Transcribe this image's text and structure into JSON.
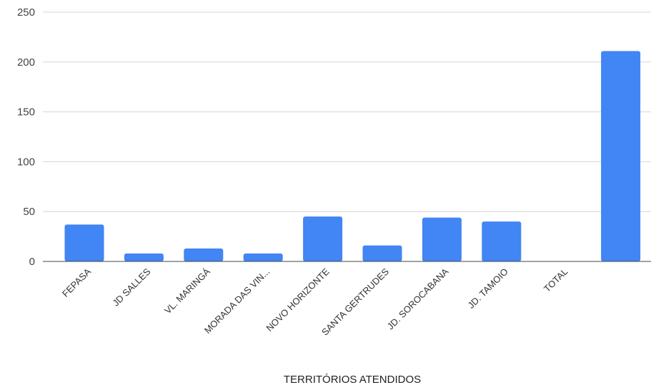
{
  "chart_data": {
    "type": "bar",
    "title": "",
    "xlabel": "TERRITÓRIOS ATENDIDOS",
    "ylabel": "",
    "ylim": [
      0,
      250
    ],
    "yticks": [
      0,
      50,
      100,
      150,
      200,
      250
    ],
    "grid": true,
    "legend": "none",
    "color": "#4285f4",
    "categories": [
      "FEPASA",
      "JD SALLES",
      "VL. MARINGÁ",
      "MORADA DAS VIN...",
      "NOVO HORIZONTE",
      "SANTA GERTRUDES",
      "JD. SOROCABANA",
      "JD. TAMOIO",
      "TOTAL",
      ""
    ],
    "values": [
      37,
      8,
      13,
      8,
      45,
      16,
      44,
      40,
      null,
      211
    ]
  }
}
